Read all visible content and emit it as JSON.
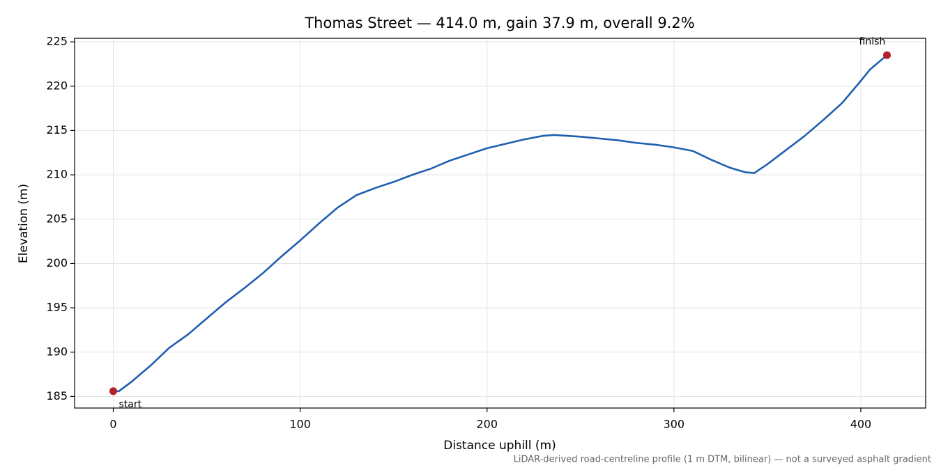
{
  "chart_data": {
    "type": "line",
    "title": "Thomas Street — 414.0 m, gain 37.9 m, overall 9.2%",
    "xlabel": "Distance uphill (m)",
    "ylabel": "Elevation (m)",
    "note": "LiDAR-derived road-centreline profile (1 m DTM, bilinear) — not a surveyed asphalt gradient",
    "annotations": [
      "start",
      "finish"
    ],
    "x": [
      0,
      3,
      10,
      20,
      30,
      40,
      50,
      60,
      70,
      80,
      90,
      100,
      110,
      120,
      130,
      140,
      150,
      160,
      170,
      180,
      190,
      200,
      210,
      220,
      230,
      236,
      250,
      260,
      270,
      280,
      290,
      300,
      310,
      320,
      330,
      338,
      343,
      350,
      360,
      370,
      380,
      390,
      400,
      405,
      414
    ],
    "values": [
      185.6,
      185.6,
      186.7,
      188.5,
      190.5,
      192.0,
      193.8,
      195.6,
      197.2,
      198.9,
      200.8,
      202.6,
      204.5,
      206.3,
      207.7,
      208.5,
      209.2,
      210.0,
      210.7,
      211.6,
      212.3,
      213.0,
      213.5,
      214.0,
      214.4,
      214.5,
      214.3,
      214.1,
      213.9,
      213.6,
      213.4,
      213.1,
      212.7,
      211.7,
      210.8,
      210.3,
      210.2,
      211.2,
      212.8,
      214.4,
      216.2,
      218.1,
      220.6,
      221.9,
      223.5
    ],
    "color": "#1f5fb0",
    "marker_color": "#b5202a",
    "xlim": [
      -20.7,
      434.7
    ],
    "ylim": [
      183.7,
      225.4
    ],
    "xticks": [
      0,
      100,
      200,
      300,
      400
    ],
    "yticks": [
      185,
      190,
      195,
      200,
      205,
      210,
      215,
      220,
      225
    ],
    "grid": true
  }
}
